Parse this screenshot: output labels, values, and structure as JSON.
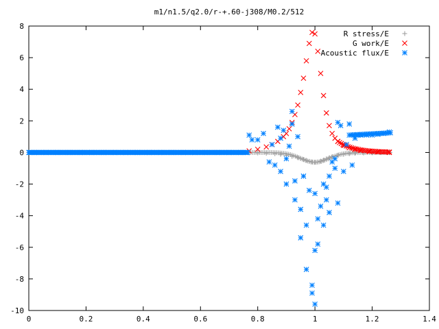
{
  "chart_data": {
    "type": "scatter",
    "title": "m1/n1.5/q2.0/r-+.60-j308/M0.2/512",
    "xlabel": "",
    "ylabel": "",
    "xlim": [
      0,
      1.4
    ],
    "ylim": [
      -10,
      8
    ],
    "xticks": [
      "0",
      "0.2",
      "0.4",
      "0.6",
      "0.8",
      "1",
      "1.2",
      "1.4"
    ],
    "yticks": [
      "-10",
      "-8",
      "-6",
      "-4",
      "-2",
      "0",
      "2",
      "4",
      "6",
      "8"
    ],
    "legend_position": "top-right",
    "grid": false,
    "series": [
      {
        "name": "R stress/E",
        "marker": "plus",
        "color": "#a0a0a0",
        "x": [
          0.77,
          0.8,
          0.83,
          0.86,
          0.88,
          0.9,
          0.92,
          0.94,
          0.95,
          0.96,
          0.97,
          0.98,
          0.99,
          1.0,
          1.01,
          1.02,
          1.03,
          1.04,
          1.05,
          1.06,
          1.08,
          1.1,
          1.12,
          1.14,
          1.17,
          1.2,
          1.23,
          1.26
        ],
        "y": [
          -0.02,
          -0.03,
          -0.05,
          -0.08,
          -0.12,
          -0.18,
          -0.25,
          -0.33,
          -0.38,
          -0.44,
          -0.5,
          -0.56,
          -0.6,
          -0.62,
          -0.6,
          -0.55,
          -0.48,
          -0.4,
          -0.33,
          -0.27,
          -0.18,
          -0.12,
          -0.08,
          -0.05,
          -0.03,
          -0.02,
          -0.01,
          -0.01
        ]
      },
      {
        "name": "G work/E",
        "marker": "cross",
        "color": "#ff0000",
        "x": [
          0.77,
          0.8,
          0.83,
          0.85,
          0.87,
          0.89,
          0.9,
          0.91,
          0.92,
          0.93,
          0.94,
          0.95,
          0.96,
          0.97,
          0.98,
          0.99,
          1.0,
          1.01,
          1.02,
          1.03,
          1.04,
          1.05,
          1.06,
          1.07,
          1.08,
          1.1,
          1.12,
          1.14,
          1.16,
          1.19,
          1.22,
          1.26
        ],
        "y": [
          0.1,
          0.2,
          0.35,
          0.5,
          0.7,
          1.0,
          1.2,
          1.5,
          1.9,
          2.4,
          3.0,
          3.8,
          4.7,
          5.8,
          6.9,
          7.6,
          7.5,
          6.4,
          5.0,
          3.6,
          2.5,
          1.7,
          1.2,
          0.9,
          0.7,
          0.45,
          0.3,
          0.2,
          0.12,
          0.06,
          0.03,
          0.0
        ]
      },
      {
        "name": "Acoustic flux/E",
        "marker": "star",
        "color": "#0080ff",
        "x": [
          0.02,
          0.06,
          0.1,
          0.14,
          0.18,
          0.22,
          0.26,
          0.3,
          0.34,
          0.38,
          0.42,
          0.46,
          0.5,
          0.54,
          0.58,
          0.62,
          0.66,
          0.7,
          0.74,
          0.77,
          0.78,
          0.8,
          0.82,
          0.84,
          0.86,
          0.87,
          0.88,
          0.89,
          0.9,
          0.91,
          0.92,
          0.93,
          0.94,
          0.95,
          0.96,
          0.97,
          0.98,
          0.99,
          1.0,
          1.0,
          1.01,
          1.02,
          1.03,
          1.04,
          1.05,
          1.06,
          1.07,
          1.08,
          1.09,
          1.1,
          1.11,
          1.12,
          1.13,
          1.14,
          1.15,
          1.16,
          1.18,
          1.2,
          1.22,
          1.24,
          1.26,
          0.85,
          0.88,
          0.9,
          0.93,
          0.95,
          0.97,
          0.99,
          1.01,
          1.03,
          1.05,
          1.07,
          0.92,
          0.96,
          1.0,
          1.04,
          1.08
        ],
        "y": [
          0,
          0,
          0,
          0,
          0,
          0,
          0,
          0,
          0,
          0,
          0,
          0,
          0,
          0,
          0,
          0,
          0,
          0,
          0,
          1.1,
          0.8,
          0.8,
          1.2,
          -0.6,
          -0.8,
          1.6,
          -1.2,
          1.4,
          -2.0,
          0.4,
          2.6,
          -3.0,
          1.0,
          -3.6,
          -1.5,
          -4.6,
          -2.4,
          -8.4,
          -9.6,
          -6.2,
          -4.2,
          -3.4,
          -2.0,
          -3.0,
          -1.5,
          -0.6,
          -0.4,
          -3.2,
          1.7,
          -1.2,
          0.5,
          1.8,
          -0.8,
          0.9,
          1.1,
          1.1,
          1.1,
          1.1,
          1.15,
          1.2,
          1.3,
          0.5,
          0.9,
          -0.4,
          -1.8,
          -5.4,
          -7.4,
          -8.9,
          -5.8,
          -4.6,
          -3.8,
          -1.0,
          1.8,
          -1.5,
          -2.6,
          -2.2,
          1.9
        ]
      }
    ]
  }
}
